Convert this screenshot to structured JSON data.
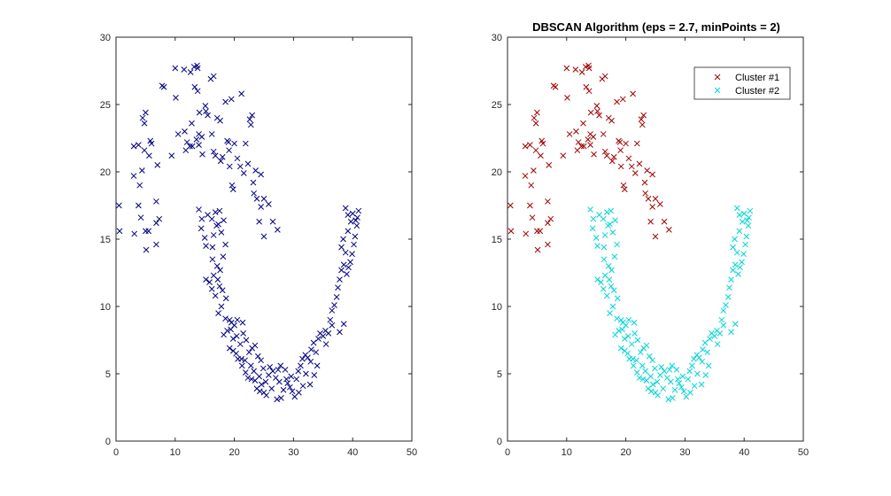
{
  "figure": {
    "background": "#ffffff",
    "axis_color": "#262626"
  },
  "chart_data": [
    {
      "type": "scatter",
      "title": "",
      "xlabel": "",
      "ylabel": "",
      "xlim": [
        0,
        50
      ],
      "ylim": [
        0,
        30
      ],
      "xticks": [
        "0",
        "10",
        "20",
        "30",
        "40",
        "50"
      ],
      "yticks": [
        "0",
        "5",
        "10",
        "15",
        "20",
        "25",
        "30"
      ],
      "grid": false,
      "legend": null,
      "marker": "x",
      "series": [
        {
          "color": "#000080",
          "points": [
            [
              0.5,
              17.5
            ],
            [
              0.6,
              15.6
            ],
            [
              3,
              21.9
            ],
            [
              3,
              19.7
            ],
            [
              3.1,
              15.4
            ],
            [
              3.8,
              22
            ],
            [
              3.8,
              17.5
            ],
            [
              4,
              19
            ],
            [
              4.2,
              16.6
            ],
            [
              4.4,
              20.1
            ],
            [
              4.5,
              24
            ],
            [
              4.8,
              23.6
            ],
            [
              4.8,
              21.6
            ],
            [
              5,
              24.4
            ],
            [
              5,
              15.6
            ],
            [
              5.1,
              14.2
            ],
            [
              5.5,
              15.6
            ],
            [
              5.6,
              21.2
            ],
            [
              5.8,
              22.3
            ],
            [
              6,
              22.1
            ],
            [
              6.8,
              17.8
            ],
            [
              6.8,
              14.6
            ],
            [
              6.8,
              16.2
            ],
            [
              7,
              20.5
            ],
            [
              7.3,
              16.5
            ],
            [
              7.8,
              26.4
            ],
            [
              8.1,
              26.3
            ],
            [
              9.4,
              21.2
            ],
            [
              10,
              27.7
            ],
            [
              10.1,
              25.5
            ],
            [
              10.5,
              22.8
            ],
            [
              11.5,
              27.6
            ],
            [
              11.6,
              23
            ],
            [
              11.8,
              21.6
            ],
            [
              12,
              22.2
            ],
            [
              12.5,
              21.9
            ],
            [
              12.6,
              27.4
            ],
            [
              12.8,
              23.6
            ],
            [
              12.9,
              21.9
            ],
            [
              13.2,
              27.8
            ],
            [
              13.3,
              26.3
            ],
            [
              13.6,
              22.4
            ],
            [
              13.7,
              27.9
            ],
            [
              13.8,
              27.7
            ],
            [
              13.8,
              26
            ],
            [
              14,
              22.8
            ],
            [
              14,
              22
            ],
            [
              14.1,
              24.4
            ],
            [
              14.5,
              22.6
            ],
            [
              14.6,
              21.3
            ],
            [
              15.1,
              24.9
            ],
            [
              15.2,
              24.5
            ],
            [
              15.5,
              24.2
            ],
            [
              16,
              26.9
            ],
            [
              16.2,
              22.8
            ],
            [
              16.5,
              21.5
            ],
            [
              16.5,
              27.1
            ],
            [
              16.8,
              21.2
            ],
            [
              17.1,
              24
            ],
            [
              17.6,
              23.8
            ],
            [
              17.7,
              20.8
            ],
            [
              18,
              21.1
            ],
            [
              18.5,
              25.2
            ],
            [
              18.8,
              22.3
            ],
            [
              19,
              22.2
            ],
            [
              19.1,
              21.6
            ],
            [
              19.2,
              20.4
            ],
            [
              19.5,
              25.4
            ],
            [
              19.6,
              19
            ],
            [
              19.8,
              18.7
            ],
            [
              20,
              22.1
            ],
            [
              20.5,
              21
            ],
            [
              21,
              20.4
            ],
            [
              21.2,
              25.8
            ],
            [
              21.6,
              19.9
            ],
            [
              21.9,
              22.1
            ],
            [
              22.3,
              20.6
            ],
            [
              22.6,
              23.9
            ],
            [
              22.8,
              23.5
            ],
            [
              23,
              24.2
            ],
            [
              23.2,
              19.2
            ],
            [
              23.3,
              18.4
            ],
            [
              23.6,
              20.1
            ],
            [
              23.8,
              18
            ],
            [
              24.2,
              16.3
            ],
            [
              24.5,
              19.8
            ],
            [
              24.5,
              17.4
            ],
            [
              25,
              18
            ],
            [
              25,
              15.2
            ],
            [
              25.8,
              17.6
            ],
            [
              26.5,
              16.3
            ],
            [
              27.3,
              15.7
            ],
            [
              14,
              17.2
            ],
            [
              14.5,
              16.5
            ],
            [
              14.4,
              15.8
            ],
            [
              15,
              15.1
            ],
            [
              15.2,
              14.5
            ],
            [
              15.5,
              16.8
            ],
            [
              16.2,
              16.5
            ],
            [
              16.3,
              14.4
            ],
            [
              16.5,
              15.3
            ],
            [
              16.8,
              17
            ],
            [
              17,
              16
            ],
            [
              17.3,
              16.1
            ],
            [
              17.5,
              17.1
            ],
            [
              17.8,
              15.5
            ],
            [
              18.2,
              16.4
            ],
            [
              18.5,
              14.6
            ],
            [
              18.1,
              13.7
            ],
            [
              16.3,
              13.5
            ],
            [
              17.1,
              13
            ],
            [
              17.6,
              12.7
            ],
            [
              17.2,
              12
            ],
            [
              16.5,
              12.3
            ],
            [
              15.8,
              11.8
            ],
            [
              15.2,
              12
            ],
            [
              16.2,
              11.3
            ],
            [
              16.8,
              10.8
            ],
            [
              17.5,
              11.5
            ],
            [
              18,
              11.2
            ],
            [
              18.6,
              10.6
            ],
            [
              17.8,
              10
            ],
            [
              17.3,
              9.5
            ],
            [
              18.5,
              9.1
            ],
            [
              19.2,
              9
            ],
            [
              19.5,
              8.8
            ],
            [
              20,
              8.6
            ],
            [
              20.5,
              9
            ],
            [
              18.8,
              8.2
            ],
            [
              18.2,
              7.9
            ],
            [
              19.8,
              7.6
            ],
            [
              20.4,
              7.8
            ],
            [
              21,
              7.2
            ],
            [
              21.5,
              8
            ],
            [
              22,
              7.5
            ],
            [
              19.2,
              6.9
            ],
            [
              19.8,
              6.7
            ],
            [
              20.3,
              6.5
            ],
            [
              21.2,
              6.1
            ],
            [
              21.8,
              6
            ],
            [
              22.5,
              6.6
            ],
            [
              23,
              6.9
            ],
            [
              23.5,
              7.1
            ],
            [
              24,
              6.3
            ],
            [
              24.5,
              6
            ],
            [
              22.8,
              5.6
            ],
            [
              23.3,
              5.2
            ],
            [
              21.9,
              5.1
            ],
            [
              22.3,
              4.7
            ],
            [
              22.9,
              4.6
            ],
            [
              23.5,
              4.5
            ],
            [
              24.2,
              4.8
            ],
            [
              24.6,
              4.2
            ],
            [
              23.8,
              3.9
            ],
            [
              24.3,
              3.7
            ],
            [
              25,
              3.6
            ],
            [
              25.3,
              4.4
            ],
            [
              25.8,
              4.9
            ],
            [
              26,
              5.5
            ],
            [
              26.5,
              5.2
            ],
            [
              27,
              4.7
            ],
            [
              27.4,
              5.3
            ],
            [
              27.8,
              5.6
            ],
            [
              27.2,
              3.1
            ],
            [
              27.9,
              3.2
            ],
            [
              28.3,
              3.8
            ],
            [
              28.8,
              4.6
            ],
            [
              29,
              4.3
            ],
            [
              29.4,
              4
            ],
            [
              29.8,
              3.7
            ],
            [
              30.2,
              3.3
            ],
            [
              30.5,
              4.6
            ],
            [
              30.8,
              5.2
            ],
            [
              31.2,
              5.6
            ],
            [
              31.5,
              6.1
            ],
            [
              32,
              6.4
            ],
            [
              32.4,
              6.2
            ],
            [
              32.9,
              5.9
            ],
            [
              33,
              6.8
            ],
            [
              33.4,
              7.3
            ],
            [
              33.8,
              6.6
            ],
            [
              34.2,
              7.6
            ],
            [
              34.5,
              8
            ],
            [
              35,
              7.8
            ],
            [
              35.4,
              8.2
            ],
            [
              35.9,
              8
            ],
            [
              36.2,
              9
            ],
            [
              36.5,
              9.7
            ],
            [
              36.9,
              10.1
            ],
            [
              37.3,
              10.7
            ],
            [
              37.5,
              11.4
            ],
            [
              37.8,
              12
            ],
            [
              38.1,
              12.7
            ],
            [
              38.5,
              13.1
            ],
            [
              38.8,
              14
            ],
            [
              39,
              12.4
            ],
            [
              39.3,
              12.9
            ],
            [
              39.6,
              13.3
            ],
            [
              39.9,
              13.9
            ],
            [
              40.2,
              14.6
            ],
            [
              40.4,
              15.2
            ],
            [
              40.7,
              16
            ],
            [
              38.1,
              14.4
            ],
            [
              38.4,
              15
            ],
            [
              39.2,
              15.6
            ],
            [
              39.7,
              16.3
            ],
            [
              40,
              16.9
            ],
            [
              41,
              17.1
            ],
            [
              38.8,
              17.3
            ],
            [
              39.2,
              16.8
            ],
            [
              40.5,
              16.4
            ],
            [
              40.8,
              16.6
            ],
            [
              38.5,
              8.7
            ],
            [
              37.8,
              8.1
            ],
            [
              36.5,
              8.6
            ],
            [
              35.5,
              7.2
            ],
            [
              34,
              5.6
            ],
            [
              33.5,
              4.9
            ],
            [
              32.8,
              4.2
            ],
            [
              32.1,
              5
            ],
            [
              31.6,
              4.1
            ],
            [
              30.9,
              3.6
            ],
            [
              29.6,
              4.8
            ],
            [
              28.6,
              5.3
            ],
            [
              27.6,
              4.4
            ],
            [
              26.3,
              3.9
            ],
            [
              25.4,
              3.4
            ],
            [
              24.9,
              5.4
            ],
            [
              21.3,
              5.6
            ],
            [
              20.6,
              6.1
            ],
            [
              19.4,
              8.3
            ],
            [
              21.4,
              8.8
            ]
          ]
        }
      ]
    },
    {
      "type": "scatter",
      "title": "DBSCAN Algorithm (eps = 2.7, minPoints = 2)",
      "xlabel": "",
      "ylabel": "",
      "xlim": [
        0,
        50
      ],
      "ylim": [
        0,
        30
      ],
      "xticks": [
        "0",
        "10",
        "20",
        "30",
        "40",
        "50"
      ],
      "yticks": [
        "0",
        "5",
        "10",
        "15",
        "20",
        "25",
        "30"
      ],
      "grid": false,
      "legend": "top-right",
      "marker": "x",
      "series": [
        {
          "name": "Cluster #1",
          "color": "#a00000",
          "points": "upper"
        },
        {
          "name": "Cluster #2",
          "color": "#00d4d4",
          "points": "lower"
        }
      ]
    }
  ]
}
